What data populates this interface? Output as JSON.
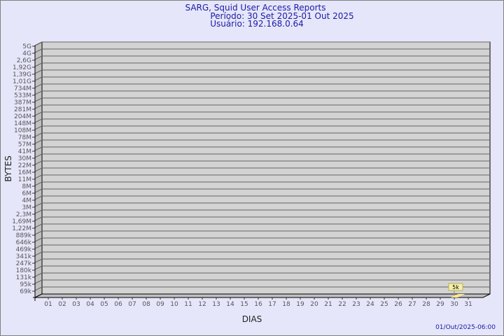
{
  "chart_data": {
    "type": "bar",
    "title": "SARG, Squid User Access Reports",
    "subtitle_period": "Período: 30 Set 2025-01 Out 2025",
    "subtitle_user": "Usuário: 192.168.0.64",
    "xlabel": "DIAS",
    "ylabel": "BYTES",
    "footer": "01/Out/2025-06:00",
    "categories": [
      "01",
      "02",
      "03",
      "04",
      "05",
      "06",
      "07",
      "08",
      "09",
      "10",
      "11",
      "12",
      "13",
      "14",
      "15",
      "16",
      "17",
      "18",
      "19",
      "20",
      "21",
      "22",
      "23",
      "24",
      "25",
      "26",
      "27",
      "28",
      "29",
      "30",
      "31"
    ],
    "y_ticks": [
      "5G",
      "4G",
      "2,6G",
      "1,92G",
      "1,39G",
      "1,01G",
      "734M",
      "533M",
      "387M",
      "281M",
      "204M",
      "148M",
      "108M",
      "78M",
      "57M",
      "41M",
      "30M",
      "22M",
      "16M",
      "11M",
      "8M",
      "6M",
      "4M",
      "3M",
      "2,3M",
      "1,69M",
      "1,22M",
      "889k",
      "646k",
      "469k",
      "341k",
      "247k",
      "180k",
      "131k",
      "95k",
      "69k"
    ],
    "y_scale": "log",
    "grid": true,
    "bars": [
      {
        "category": "30",
        "value": 5000,
        "label": "5k"
      }
    ],
    "colors": {
      "background": "#e6e6fa",
      "plot": "#d3d3d3",
      "bar": "#ffe88a",
      "label_box": "#f5f0a8",
      "text": "#1a1aa6"
    }
  }
}
